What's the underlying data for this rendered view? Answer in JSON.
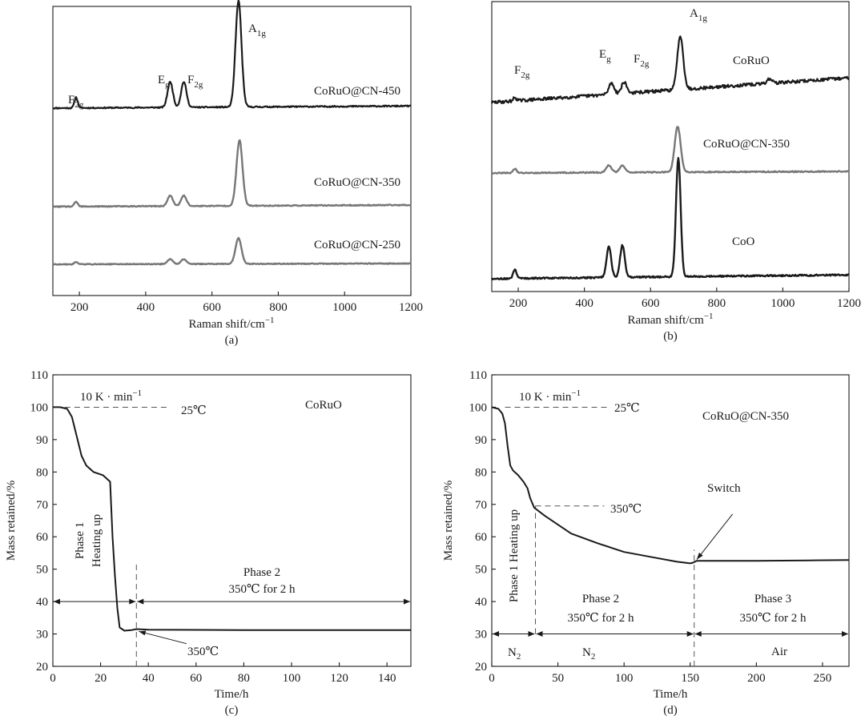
{
  "chart_data": [
    {
      "id": "a",
      "type": "line",
      "caption": "(a)",
      "xlabel": "Raman shift/cm",
      "ylabel": "",
      "xlim": [
        120,
        1200
      ],
      "xticks": [
        200,
        400,
        600,
        800,
        1000,
        1200
      ],
      "series": [
        {
          "name": "CoRuO@CN-450",
          "color": "#1a1a1a",
          "base": 0.0,
          "slope": 0.02,
          "noise": 0.006,
          "peaks": [
            [
              190,
              0.1,
              5
            ],
            [
              474,
              0.24,
              8
            ],
            [
              515,
              0.24,
              8
            ],
            [
              680,
              1.0,
              9
            ]
          ]
        },
        {
          "name": "CoRuO@CN-350",
          "color": "#777777",
          "base": 0.0,
          "slope": 0.02,
          "noise": 0.006,
          "peaks": [
            [
              190,
              0.06,
              5
            ],
            [
              474,
              0.13,
              8
            ],
            [
              515,
              0.13,
              8
            ],
            [
              683,
              0.82,
              9
            ]
          ]
        },
        {
          "name": "CoRuO@CN-250",
          "color": "#777777",
          "base": 0.0,
          "slope": 0.01,
          "noise": 0.005,
          "peaks": [
            [
              190,
              0.03,
              5
            ],
            [
              474,
              0.06,
              8
            ],
            [
              515,
              0.06,
              8
            ],
            [
              680,
              0.32,
              9
            ]
          ]
        }
      ],
      "annotations": [
        {
          "main": "F",
          "sub": "2g",
          "x": 190,
          "y": 0.18
        },
        {
          "main": "E",
          "sub": "g",
          "x": 474,
          "y": 0.43
        },
        {
          "main": "F",
          "sub": "2g",
          "x": 515,
          "y": 0.42
        },
        {
          "main": "A",
          "sub": "1g",
          "x": 680,
          "y": 1.08
        }
      ]
    },
    {
      "id": "b",
      "type": "line",
      "caption": "(b)",
      "xlabel": "Raman shift/cm",
      "ylabel": "",
      "xlim": [
        120,
        1200
      ],
      "xticks": [
        200,
        400,
        600,
        800,
        1000,
        1200
      ],
      "series": [
        {
          "name": "CoRuO",
          "color": "#1a1a1a",
          "base": 0.0,
          "slope": 0.22,
          "noise": 0.014,
          "peaks": [
            [
              190,
              0.03,
              5
            ],
            [
              482,
              0.1,
              8
            ],
            [
              520,
              0.1,
              8
            ],
            [
              690,
              0.48,
              9
            ],
            [
              960,
              0.04,
              8
            ]
          ]
        },
        {
          "name": "CoRuO@CN-350",
          "color": "#777777",
          "base": 0.0,
          "slope": 0.02,
          "noise": 0.007,
          "peaks": [
            [
              190,
              0.05,
              5
            ],
            [
              474,
              0.09,
              8
            ],
            [
              515,
              0.09,
              8
            ],
            [
              682,
              0.57,
              9
            ]
          ]
        },
        {
          "name": "CoO",
          "color": "#1a1a1a",
          "base": 0.0,
          "slope": 0.03,
          "noise": 0.006,
          "peaks": [
            [
              190,
              0.07,
              5
            ],
            [
              474,
              0.24,
              7
            ],
            [
              515,
              0.25,
              7
            ],
            [
              684,
              0.93,
              7
            ]
          ]
        }
      ],
      "annotations": [
        {
          "main": "F",
          "sub": "2g",
          "x": 210,
          "y": 0.42
        },
        {
          "main": "E",
          "sub": "g",
          "x": 482,
          "y": 0.56
        },
        {
          "main": "F",
          "sub": "2g",
          "x": 530,
          "y": 0.55
        },
        {
          "main": "A",
          "sub": "1g",
          "x": 690,
          "y": 0.72
        }
      ]
    },
    {
      "id": "c",
      "type": "line",
      "caption": "(c)",
      "xlabel": "Time/h",
      "ylabel": "Mass retained/%",
      "xlim": [
        0,
        150
      ],
      "ylim": [
        20,
        110
      ],
      "xticks": [
        0,
        20,
        40,
        60,
        80,
        100,
        120,
        140
      ],
      "yticks": [
        20,
        30,
        40,
        50,
        60,
        70,
        80,
        90,
        100,
        110
      ],
      "series": [
        {
          "name": "CoRuO",
          "color": "#1a1a1a",
          "points": [
            [
              0,
              100
            ],
            [
              3,
              100
            ],
            [
              6,
              99.5
            ],
            [
              8,
              97
            ],
            [
              10,
              91
            ],
            [
              12,
              85
            ],
            [
              14,
              82
            ],
            [
              17,
              80
            ],
            [
              21,
              79
            ],
            [
              24,
              77
            ],
            [
              25,
              60
            ],
            [
              26,
              48
            ],
            [
              27,
              38
            ],
            [
              28,
              32
            ],
            [
              30,
              31
            ],
            [
              33,
              31.2
            ],
            [
              35,
              31.5
            ],
            [
              40,
              31.3
            ],
            [
              80,
              31.2
            ],
            [
              120,
              31.2
            ],
            [
              150,
              31.2
            ]
          ]
        }
      ],
      "guides": [
        {
          "kind": "h",
          "y": 100,
          "x0": 5,
          "x1": 48
        },
        {
          "kind": "v",
          "x": 35,
          "y0": 20,
          "y1": 52
        }
      ],
      "arrows": [
        {
          "kind": "double",
          "y": 40,
          "x0": 0,
          "x1": 35
        },
        {
          "kind": "double",
          "y": 40,
          "x0": 35,
          "x1": 150
        },
        {
          "kind": "pointer",
          "from": [
            56,
            27
          ],
          "to": [
            36,
            30.8
          ]
        }
      ],
      "labels": {
        "rate": "10 K · min",
        "start_temp": "25℃",
        "sample": "CoRuO",
        "phase1_a": "Phase 1",
        "phase1_b": "Heating up",
        "phase2_a": "Phase 2",
        "phase2_b": "350℃ for 2 h",
        "end_temp": "350℃"
      }
    },
    {
      "id": "d",
      "type": "line",
      "caption": "(d)",
      "xlabel": "Time/h",
      "ylabel": "Mass retained/%",
      "xlim": [
        0,
        270
      ],
      "ylim": [
        20,
        110
      ],
      "xticks": [
        0,
        50,
        100,
        150,
        200,
        250
      ],
      "yticks": [
        20,
        30,
        40,
        50,
        60,
        70,
        80,
        90,
        100,
        110
      ],
      "series": [
        {
          "name": "CoRuO@CN-350",
          "color": "#1a1a1a",
          "points": [
            [
              0,
              100
            ],
            [
              5,
              99.5
            ],
            [
              8,
              98
            ],
            [
              10,
              95
            ],
            [
              12,
              88
            ],
            [
              14,
              82
            ],
            [
              16,
              80.5
            ],
            [
              20,
              79
            ],
            [
              24,
              77
            ],
            [
              27,
              75
            ],
            [
              29,
              72
            ],
            [
              32,
              69
            ],
            [
              40,
              66.5
            ],
            [
              60,
              61
            ],
            [
              80,
              58
            ],
            [
              100,
              55.3
            ],
            [
              120,
              53.8
            ],
            [
              140,
              52.3
            ],
            [
              150,
              51.8
            ],
            [
              152,
              52
            ],
            [
              155,
              52.6
            ],
            [
              170,
              52.6
            ],
            [
              200,
              52.6
            ],
            [
              240,
              52.7
            ],
            [
              270,
              52.8
            ]
          ]
        }
      ],
      "guides": [
        {
          "kind": "h",
          "y": 100,
          "x0": 10,
          "x1": 88
        },
        {
          "kind": "h",
          "y": 69.5,
          "x0": 33,
          "x1": 85
        },
        {
          "kind": "v",
          "x": 33,
          "y0": 30,
          "y1": 69.5
        },
        {
          "kind": "v",
          "x": 153,
          "y0": 20,
          "y1": 56
        }
      ],
      "arrows": [
        {
          "kind": "double",
          "y": 30,
          "x0": 0,
          "x1": 33
        },
        {
          "kind": "double",
          "y": 30,
          "x0": 33,
          "x1": 153
        },
        {
          "kind": "double",
          "y": 30,
          "x0": 153,
          "x1": 270
        },
        {
          "kind": "pointer",
          "from": [
            182,
            67
          ],
          "to": [
            155,
            53
          ]
        }
      ],
      "labels": {
        "rate": "10 K · min",
        "start_temp": "25℃",
        "sample": "CoRuO@CN-350",
        "phase1": "Phase 1 Heating up",
        "temp_label": "350℃",
        "switch": "Switch",
        "phase2_a": "Phase 2",
        "phase2_b": "350℃ for 2 h",
        "phase3_a": "Phase 3",
        "phase3_b": "350℃ for 2 h",
        "gas1": "N",
        "gas2": "N",
        "gas3": "Air"
      }
    }
  ]
}
